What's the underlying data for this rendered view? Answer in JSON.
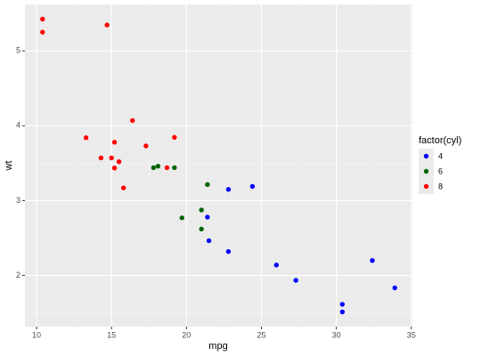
{
  "chart_data": {
    "type": "scatter",
    "x_label": "mpg",
    "y_label": "wt",
    "legend_title": "factor(cyl)",
    "legend_position": "right",
    "grid": true,
    "xlim": [
      9.225,
      35.075
    ],
    "xticks": [
      10,
      15,
      20,
      25,
      30,
      35
    ],
    "ylim": [
      1.317,
      5.62
    ],
    "yticks": [
      2,
      3,
      4,
      5
    ],
    "series": [
      {
        "name": "4",
        "color": "#0000ff",
        "x": [
          22.8,
          24.4,
          22.8,
          32.4,
          30.4,
          33.9,
          21.5,
          27.3,
          26.0,
          30.4,
          21.4
        ],
        "values": [
          2.32,
          3.19,
          3.15,
          2.2,
          1.615,
          1.835,
          2.465,
          1.935,
          2.14,
          1.513,
          2.78
        ]
      },
      {
        "name": "6",
        "color": "#006400",
        "x": [
          21.0,
          21.0,
          21.4,
          18.1,
          19.2,
          17.8,
          19.7
        ],
        "values": [
          2.62,
          2.875,
          3.215,
          3.46,
          3.44,
          3.44,
          2.77
        ]
      },
      {
        "name": "8",
        "color": "#ff0000",
        "x": [
          18.7,
          14.3,
          16.4,
          17.3,
          15.2,
          10.4,
          10.4,
          14.7,
          15.5,
          15.2,
          13.3,
          19.2,
          15.8,
          15.0
        ],
        "values": [
          3.44,
          3.57,
          4.07,
          3.73,
          3.78,
          5.25,
          5.424,
          5.345,
          3.52,
          3.435,
          3.84,
          3.845,
          3.17,
          3.57
        ]
      }
    ]
  }
}
